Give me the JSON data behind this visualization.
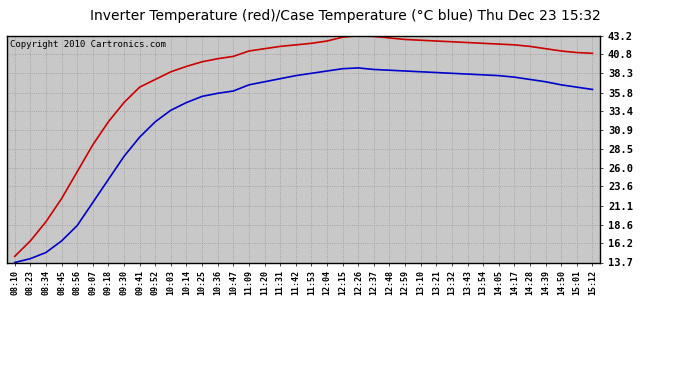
{
  "title": "Inverter Temperature (red)/Case Temperature (°C blue) Thu Dec 23 15:32",
  "copyright": "Copyright 2010 Cartronics.com",
  "yticks": [
    13.7,
    16.2,
    18.6,
    21.1,
    23.6,
    26.0,
    28.5,
    30.9,
    33.4,
    35.8,
    38.3,
    40.8,
    43.2
  ],
  "ylim": [
    13.7,
    43.2
  ],
  "xtick_labels": [
    "08:10",
    "08:23",
    "08:34",
    "08:45",
    "08:56",
    "09:07",
    "09:18",
    "09:30",
    "09:41",
    "09:52",
    "10:03",
    "10:14",
    "10:25",
    "10:36",
    "10:47",
    "11:09",
    "11:20",
    "11:31",
    "11:42",
    "11:53",
    "12:04",
    "12:15",
    "12:26",
    "12:37",
    "12:48",
    "12:59",
    "13:10",
    "13:21",
    "13:32",
    "13:43",
    "13:54",
    "14:05",
    "14:17",
    "14:28",
    "14:39",
    "14:50",
    "15:01",
    "15:12"
  ],
  "red_y": [
    14.5,
    16.5,
    19.0,
    22.0,
    25.5,
    29.0,
    32.0,
    34.5,
    36.5,
    37.5,
    38.5,
    39.2,
    39.8,
    40.2,
    40.5,
    41.2,
    41.5,
    41.8,
    42.0,
    42.2,
    42.5,
    43.0,
    43.2,
    43.1,
    42.9,
    42.7,
    42.6,
    42.5,
    42.4,
    42.3,
    42.2,
    42.1,
    42.0,
    41.8,
    41.5,
    41.2,
    41.0,
    40.9
  ],
  "blue_y": [
    13.7,
    14.2,
    15.0,
    16.5,
    18.5,
    21.5,
    24.5,
    27.5,
    30.0,
    32.0,
    33.5,
    34.5,
    35.3,
    35.7,
    36.0,
    36.8,
    37.2,
    37.6,
    38.0,
    38.3,
    38.6,
    38.9,
    39.0,
    38.8,
    38.7,
    38.6,
    38.5,
    38.4,
    38.3,
    38.2,
    38.1,
    38.0,
    37.8,
    37.5,
    37.2,
    36.8,
    36.5,
    36.2
  ],
  "fig_bg_color": "#ffffff",
  "plot_bg_color": "#c8c8c8",
  "red_color": "#cc0000",
  "blue_color": "#0000cc",
  "grid_color": "#999999",
  "title_fontsize": 10,
  "copyright_fontsize": 6.5,
  "ytick_fontsize": 7.5,
  "xtick_fontsize": 6
}
